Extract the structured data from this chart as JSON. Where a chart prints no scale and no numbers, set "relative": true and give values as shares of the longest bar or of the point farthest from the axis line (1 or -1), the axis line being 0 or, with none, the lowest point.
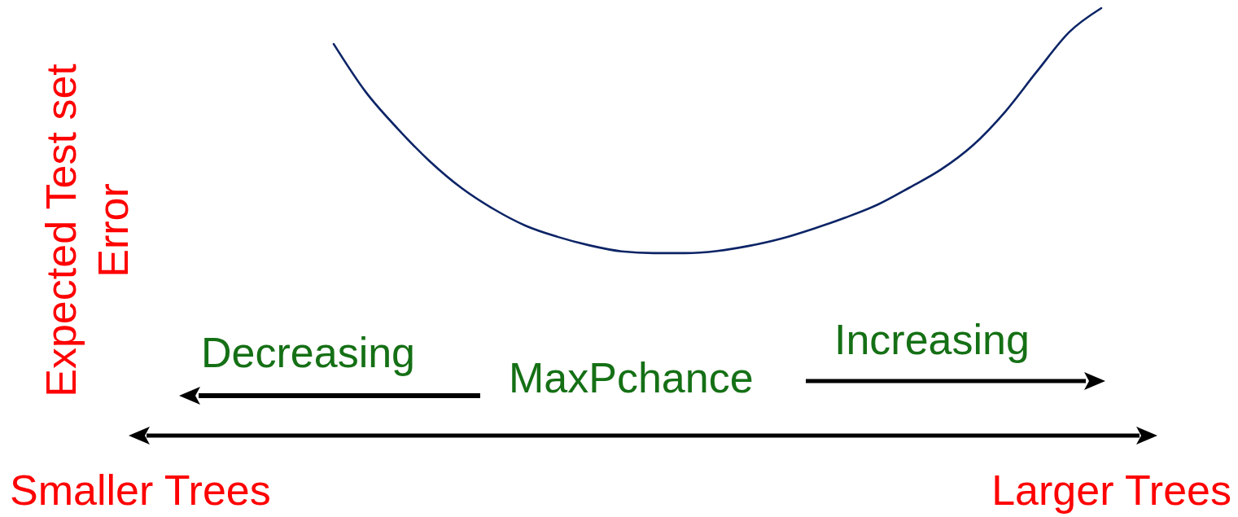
{
  "chart_data": {
    "type": "line",
    "relative": true,
    "categories": [
      null,
      null,
      null,
      null,
      null,
      null,
      null,
      null,
      null,
      null,
      null,
      null,
      null,
      null,
      null,
      null,
      null,
      null,
      null,
      null,
      null,
      null,
      null,
      null,
      null
    ],
    "series": [
      {
        "color": "#0c2466",
        "values": [
          0.916,
          0.804,
          0.718,
          0.642,
          0.579,
          0.53,
          0.491,
          0.465,
          0.445,
          0.431,
          0.427,
          0.427,
          0.432,
          0.444,
          0.461,
          0.484,
          0.51,
          0.54,
          0.58,
          0.623,
          0.68,
          0.758,
          0.853,
          0.944,
          1
        ]
      }
    ],
    "ylabel": "Expected Test set Error",
    "annotations": [
      "Decreasing",
      "MaxPchance",
      "Increasing",
      "Smaller Trees",
      "Larger Trees"
    ]
  }
}
